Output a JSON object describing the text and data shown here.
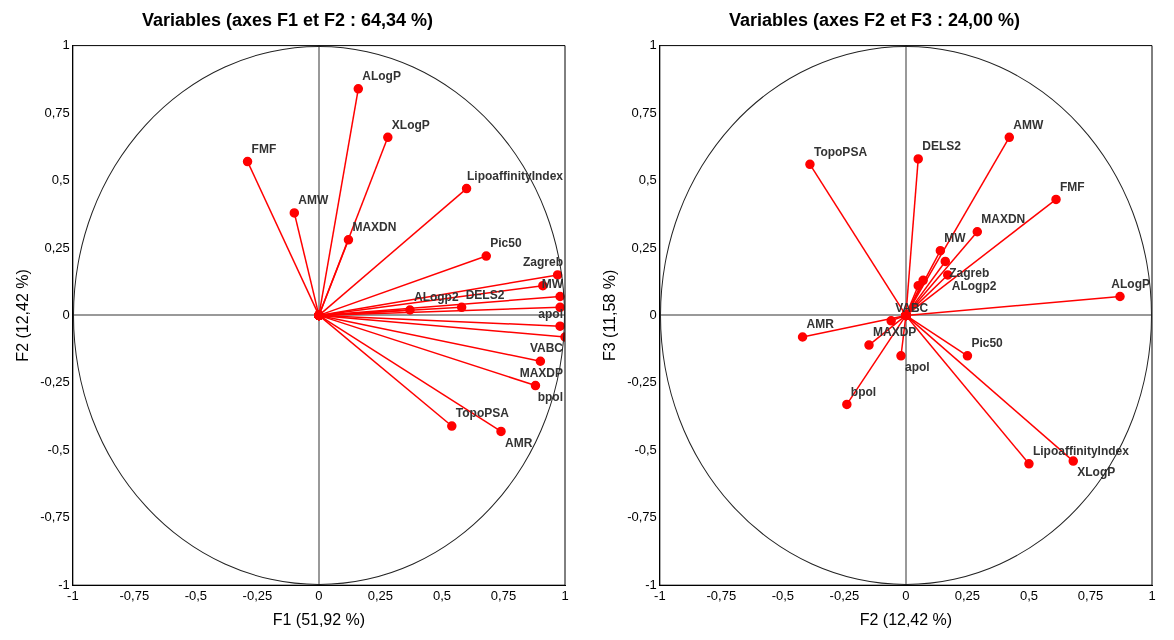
{
  "chart_data": [
    {
      "type": "line",
      "title": "Variables (axes F1 et F2 : 64,34 %)",
      "xlabel": "F1 (51,92 %)",
      "ylabel": "F2 (12,42 %)",
      "xlim": [
        -1,
        1
      ],
      "ylim": [
        -1,
        1
      ],
      "xticks": [
        -1,
        {
          "value": -0.75,
          "label": "-0,75"
        },
        {
          "value": -0.5,
          "label": "-0,5"
        },
        {
          "value": -0.25,
          "label": "-0,25"
        },
        0,
        {
          "value": 0.25,
          "label": "0,25"
        },
        {
          "value": 0.5,
          "label": "0,5"
        },
        {
          "value": 0.75,
          "label": "0,75"
        },
        1
      ],
      "yticks": [
        -1,
        {
          "value": -0.75,
          "label": "-0,75"
        },
        {
          "value": -0.5,
          "label": "-0,5"
        },
        {
          "value": -0.25,
          "label": "-0,25"
        },
        0,
        {
          "value": 0.25,
          "label": "0,25"
        },
        {
          "value": 0.5,
          "label": "0,5"
        },
        {
          "value": 0.75,
          "label": "0,75"
        },
        1
      ],
      "marker": "circle",
      "line_style": "solid",
      "series": [
        {
          "name": "FMF",
          "color": "#ff0000",
          "x": [
            0,
            -0.29
          ],
          "values": [
            0,
            0.57
          ]
        },
        {
          "name": "AMW",
          "color": "#ff0000",
          "x": [
            0,
            -0.1
          ],
          "values": [
            0,
            0.38
          ]
        },
        {
          "name": "ALogP",
          "color": "#ff0000",
          "x": [
            0,
            0.16
          ],
          "values": [
            0,
            0.84
          ]
        },
        {
          "name": "XLogP",
          "color": "#ff0000",
          "x": [
            0,
            0.28
          ],
          "values": [
            0,
            0.66
          ]
        },
        {
          "name": "LipoaffinityIndex",
          "color": "#ff0000",
          "x": [
            0,
            0.6
          ],
          "values": [
            0,
            0.47
          ]
        },
        {
          "name": "MAXDN",
          "color": "#ff0000",
          "x": [
            0,
            0.12
          ],
          "values": [
            0,
            0.28
          ]
        },
        {
          "name": "Pic50",
          "color": "#ff0000",
          "x": [
            0,
            0.68
          ],
          "values": [
            0,
            0.22
          ]
        },
        {
          "name": "ALogp2",
          "color": "#ff0000",
          "x": [
            0,
            0.37
          ],
          "values": [
            0,
            0.02
          ]
        },
        {
          "name": "DELS2",
          "color": "#ff0000",
          "x": [
            0,
            0.58
          ],
          "values": [
            0,
            0.03
          ]
        },
        {
          "name": "Zagreb",
          "color": "#ff0000",
          "x": [
            0,
            0.97
          ],
          "values": [
            0,
            0.15
          ]
        },
        {
          "name": "MW",
          "color": "#ff0000",
          "x": [
            0,
            0.98
          ],
          "values": [
            0,
            0.07
          ]
        },
        {
          "color": "#ff0000",
          "x": [
            0,
            0.91
          ],
          "values": [
            0,
            0.11
          ]
        },
        {
          "color": "#ff0000",
          "x": [
            0,
            0.98
          ],
          "values": [
            0,
            0.03
          ]
        },
        {
          "name": "apol",
          "color": "#ff0000",
          "x": [
            0,
            0.98
          ],
          "values": [
            0,
            -0.04
          ]
        },
        {
          "name": "VABC",
          "color": "#ff0000",
          "x": [
            0,
            1
          ],
          "values": [
            0,
            -0.08
          ]
        },
        {
          "name": "MAXDP",
          "color": "#ff0000",
          "x": [
            0,
            0.9
          ],
          "values": [
            0,
            -0.17
          ]
        },
        {
          "name": "bpol",
          "color": "#ff0000",
          "x": [
            0,
            0.88
          ],
          "values": [
            0,
            -0.26
          ]
        },
        {
          "name": "TopoPSA",
          "color": "#ff0000",
          "x": [
            0,
            0.54
          ],
          "values": [
            0,
            -0.41
          ]
        },
        {
          "name": "AMR",
          "color": "#ff0000",
          "x": [
            0,
            0.74
          ],
          "values": [
            0,
            -0.43
          ]
        }
      ]
    },
    {
      "type": "line",
      "title": "Variables (axes F2 et F3 : 24,00 %)",
      "xlabel": "F2 (12,42 %)",
      "ylabel": "F3 (11,58 %)",
      "xlim": [
        -1,
        1
      ],
      "ylim": [
        -1,
        1
      ],
      "xticks": [
        -1,
        {
          "value": -0.75,
          "label": "-0,75"
        },
        {
          "value": -0.5,
          "label": "-0,5"
        },
        {
          "value": -0.25,
          "label": "-0,25"
        },
        0,
        {
          "value": 0.25,
          "label": "0,25"
        },
        {
          "value": 0.5,
          "label": "0,5"
        },
        {
          "value": 0.75,
          "label": "0,75"
        },
        1
      ],
      "yticks": [
        -1,
        {
          "value": -0.75,
          "label": "-0,75"
        },
        {
          "value": -0.5,
          "label": "-0,5"
        },
        {
          "value": -0.25,
          "label": "-0,25"
        },
        0,
        {
          "value": 0.25,
          "label": "0,25"
        },
        {
          "value": 0.5,
          "label": "0,5"
        },
        {
          "value": 0.75,
          "label": "0,75"
        },
        1
      ],
      "marker": "circle",
      "line_style": "solid",
      "series": [
        {
          "name": "TopoPSA",
          "color": "#ff0000",
          "x": [
            0,
            -0.39
          ],
          "values": [
            0,
            0.56
          ]
        },
        {
          "name": "DELS2",
          "color": "#ff0000",
          "x": [
            0,
            0.05
          ],
          "values": [
            0,
            0.58
          ]
        },
        {
          "name": "AMW",
          "color": "#ff0000",
          "x": [
            0,
            0.42
          ],
          "values": [
            0,
            0.66
          ]
        },
        {
          "name": "FMF",
          "color": "#ff0000",
          "x": [
            0,
            0.61
          ],
          "values": [
            0,
            0.43
          ]
        },
        {
          "name": "MAXDN",
          "color": "#ff0000",
          "x": [
            0,
            0.29
          ],
          "values": [
            0,
            0.31
          ]
        },
        {
          "name": "MW",
          "color": "#ff0000",
          "x": [
            0,
            0.14
          ],
          "values": [
            0,
            0.24
          ]
        },
        {
          "name": "Zagreb",
          "color": "#ff0000",
          "x": [
            0,
            0.16
          ],
          "values": [
            0,
            0.2
          ]
        },
        {
          "name": "ALogp2",
          "color": "#ff0000",
          "x": [
            0,
            0.17
          ],
          "values": [
            0,
            0.15
          ]
        },
        {
          "color": "#ff0000",
          "x": [
            0,
            0.07
          ],
          "values": [
            0,
            0.13
          ]
        },
        {
          "color": "#ff0000",
          "x": [
            0,
            0.05
          ],
          "values": [
            0,
            0.11
          ]
        },
        {
          "name": "ALogP",
          "color": "#ff0000",
          "x": [
            0,
            0.87
          ],
          "values": [
            0,
            0.07
          ]
        },
        {
          "name": "VABC",
          "color": "#ff0000",
          "x": [
            0,
            -0.06
          ],
          "values": [
            0,
            -0.02
          ]
        },
        {
          "name": "AMR",
          "color": "#ff0000",
          "x": [
            0,
            -0.42
          ],
          "values": [
            0,
            -0.08
          ]
        },
        {
          "name": "MAXDP",
          "color": "#ff0000",
          "x": [
            0,
            -0.15
          ],
          "values": [
            0,
            -0.11
          ]
        },
        {
          "name": "apol",
          "color": "#ff0000",
          "x": [
            0,
            -0.02
          ],
          "values": [
            0,
            -0.15
          ]
        },
        {
          "name": "bpol",
          "color": "#ff0000",
          "x": [
            0,
            -0.24
          ],
          "values": [
            0,
            -0.33
          ]
        },
        {
          "name": "Pic50",
          "color": "#ff0000",
          "x": [
            0,
            0.25
          ],
          "values": [
            0,
            -0.15
          ]
        },
        {
          "name": "LipoaffinityIndex",
          "color": "#ff0000",
          "x": [
            0,
            0.5
          ],
          "values": [
            0,
            -0.55
          ]
        },
        {
          "name": "XLogP",
          "color": "#ff0000",
          "x": [
            0,
            0.68
          ],
          "values": [
            0,
            -0.54
          ]
        }
      ]
    }
  ]
}
